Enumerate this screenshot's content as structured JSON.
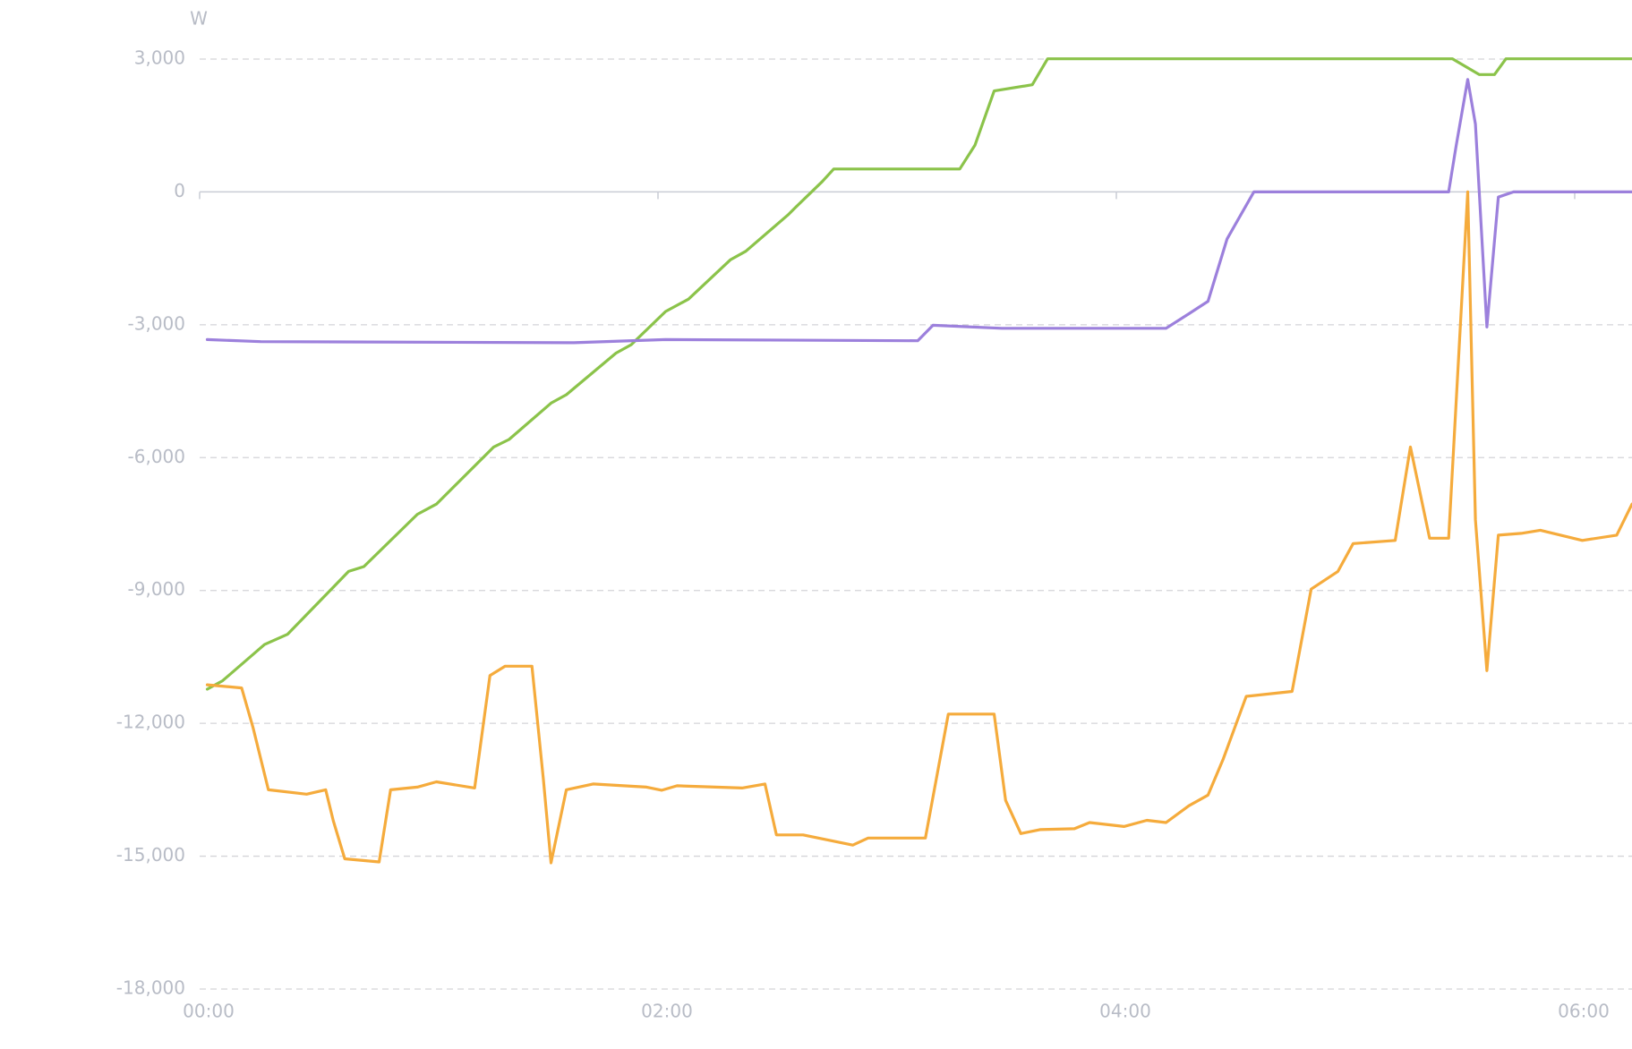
{
  "chart_data": {
    "type": "line",
    "y_label": "W",
    "grid": true,
    "xlim": [
      0,
      375
    ],
    "xticks": [
      {
        "value": 0,
        "label": "00:00"
      },
      {
        "value": 120,
        "label": "02:00"
      },
      {
        "value": 240,
        "label": "04:00"
      },
      {
        "value": 360,
        "label": "06:00"
      }
    ],
    "ylim": [
      -18000,
      3000
    ],
    "yticks": [
      {
        "value": 3000,
        "label": "3,000"
      },
      0,
      {
        "value": -3000,
        "label": "-3,000"
      },
      {
        "value": -6000,
        "label": "-6,000"
      },
      {
        "value": -9000,
        "label": "-9,000"
      },
      {
        "value": -12000,
        "label": "-12,000"
      },
      {
        "value": -15000,
        "label": "-15,000"
      },
      {
        "value": -18000,
        "label": "-18,000"
      }
    ],
    "series": [
      {
        "color": "#8bc34a",
        "x": [
          2,
          6,
          17,
          23,
          39,
          43,
          57,
          62,
          77,
          81,
          92,
          96,
          109,
          113,
          122,
          128,
          139,
          143,
          154,
          156,
          163,
          166,
          199,
          203,
          208,
          218,
          222,
          328,
          335,
          339,
          342,
          375
        ],
        "values": [
          -11230,
          -11040,
          -10220,
          -9990,
          -8570,
          -8460,
          -7280,
          -7050,
          -5760,
          -5590,
          -4770,
          -4580,
          -3640,
          -3450,
          -2700,
          -2420,
          -1530,
          -1340,
          -520,
          -350,
          235,
          517,
          517,
          1057,
          2280,
          2420,
          3007,
          3007,
          2650,
          2650,
          3007,
          3007
        ]
      },
      {
        "color": "#9c80dc",
        "x": [
          2,
          16,
          98,
          122,
          188,
          192,
          210,
          253,
          259,
          264,
          269,
          276,
          327,
          329,
          332,
          334,
          337,
          340,
          344,
          375
        ],
        "values": [
          -3335,
          -3380,
          -3405,
          -3335,
          -3360,
          -3010,
          -3080,
          -3080,
          -2750,
          -2470,
          -1060,
          0,
          0,
          1057,
          2540,
          1530,
          -3050,
          -117,
          0,
          0
        ]
      },
      {
        "color": "#f5ab3c",
        "x": [
          2,
          11,
          14,
          18,
          28,
          33,
          35,
          38,
          47,
          50,
          57,
          62,
          72,
          76,
          80,
          87,
          90,
          92,
          96,
          103,
          117,
          121,
          125,
          142,
          148,
          151,
          158,
          171,
          175,
          190,
          196,
          208,
          211,
          215,
          220,
          229,
          233,
          242,
          248,
          253,
          259,
          264,
          268,
          274,
          286,
          291,
          298,
          302,
          313,
          317,
          322,
          327,
          332,
          334,
          337,
          340,
          346,
          351,
          362,
          371,
          375
        ],
        "values": [
          -11130,
          -11200,
          -12100,
          -13500,
          -13600,
          -13500,
          -14200,
          -15060,
          -15130,
          -13500,
          -13440,
          -13320,
          -13460,
          -10920,
          -10710,
          -10710,
          -13270,
          -15150,
          -13500,
          -13370,
          -13440,
          -13510,
          -13410,
          -13460,
          -13370,
          -14520,
          -14520,
          -14750,
          -14590,
          -14590,
          -11790,
          -11790,
          -13740,
          -14490,
          -14400,
          -14380,
          -14240,
          -14330,
          -14190,
          -14240,
          -13860,
          -13620,
          -12800,
          -11390,
          -11280,
          -8970,
          -8570,
          -7940,
          -7870,
          -5760,
          -7820,
          -7820,
          0,
          -7400,
          -10810,
          -7750,
          -7710,
          -7640,
          -7870,
          -7750,
          -7050
        ]
      }
    ]
  }
}
